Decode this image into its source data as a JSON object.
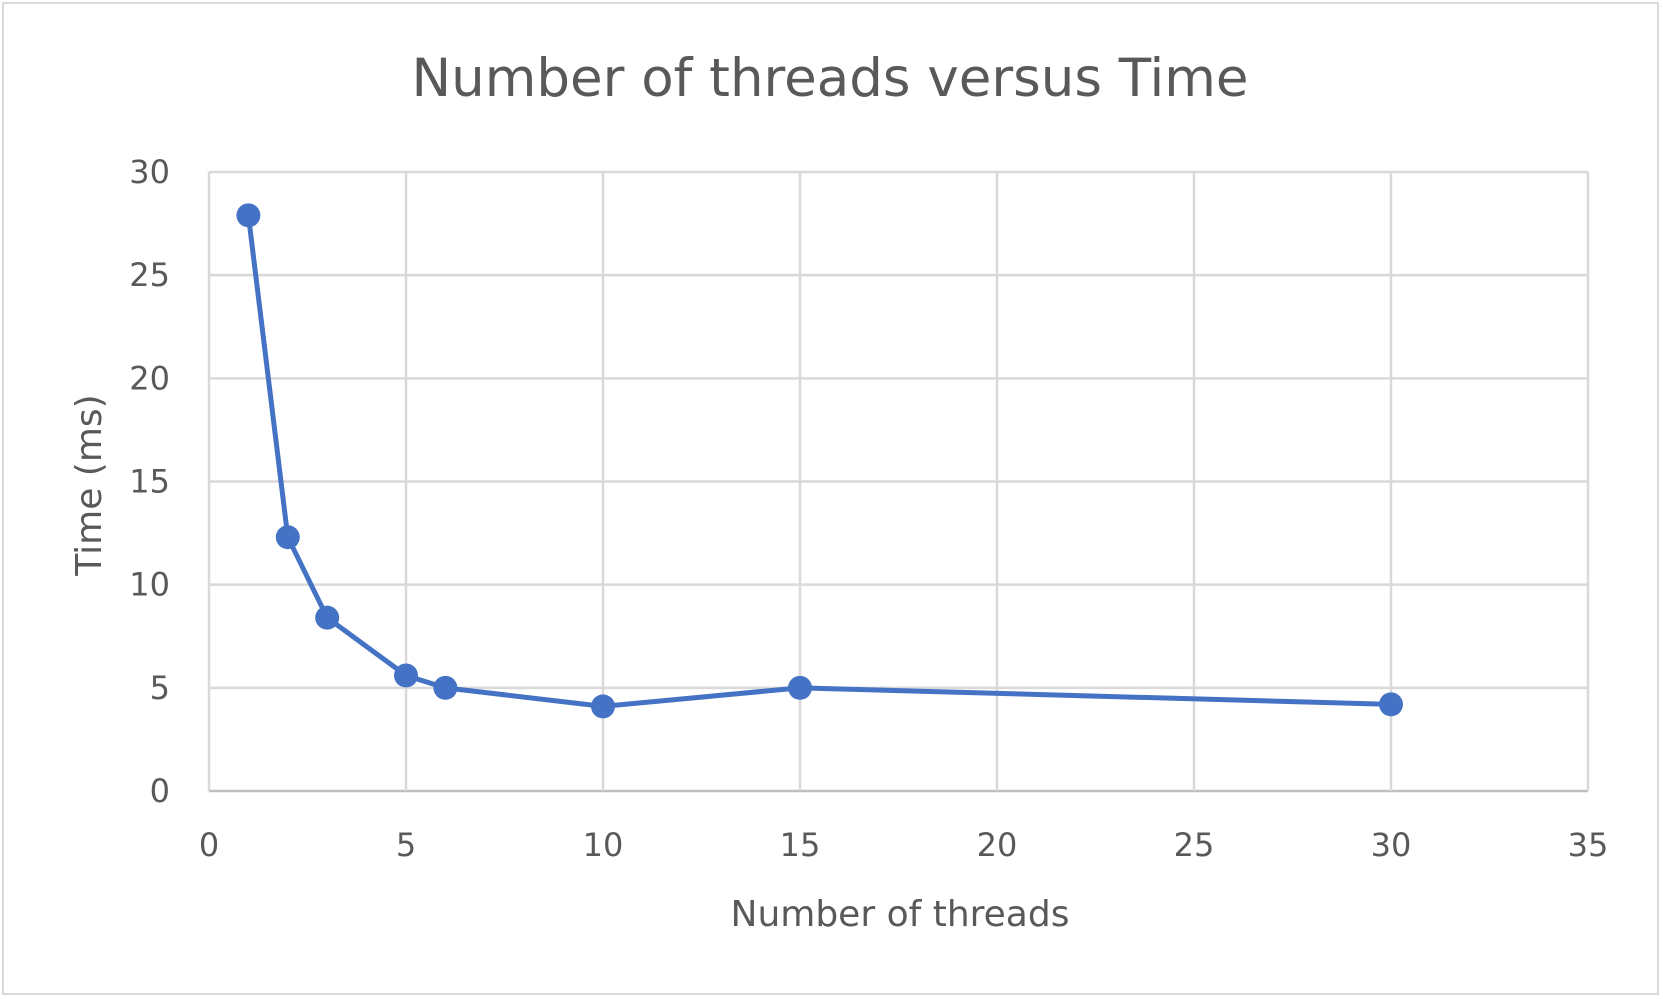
{
  "chart_data": {
    "type": "scatter",
    "title": "Number of threads versus Time",
    "xlabel": "Number of threads",
    "ylabel": "Time (ms)",
    "xlim": [
      0,
      35
    ],
    "ylim": [
      0,
      30
    ],
    "x_ticks": [
      0,
      5,
      10,
      15,
      20,
      25,
      30,
      35
    ],
    "y_ticks": [
      0,
      5,
      10,
      15,
      20,
      25,
      30
    ],
    "grid": true,
    "legend": "none",
    "line_style": "straight lines with markers",
    "colors": {
      "series": "#4472c4",
      "grid": "#d9d9d9",
      "text": "#595959"
    },
    "series": [
      {
        "x": [
          1,
          2,
          3,
          5,
          6,
          10,
          15,
          30
        ],
        "y": [
          27.9,
          12.3,
          8.4,
          5.6,
          5.0,
          4.1,
          5.0,
          4.2
        ]
      }
    ]
  }
}
